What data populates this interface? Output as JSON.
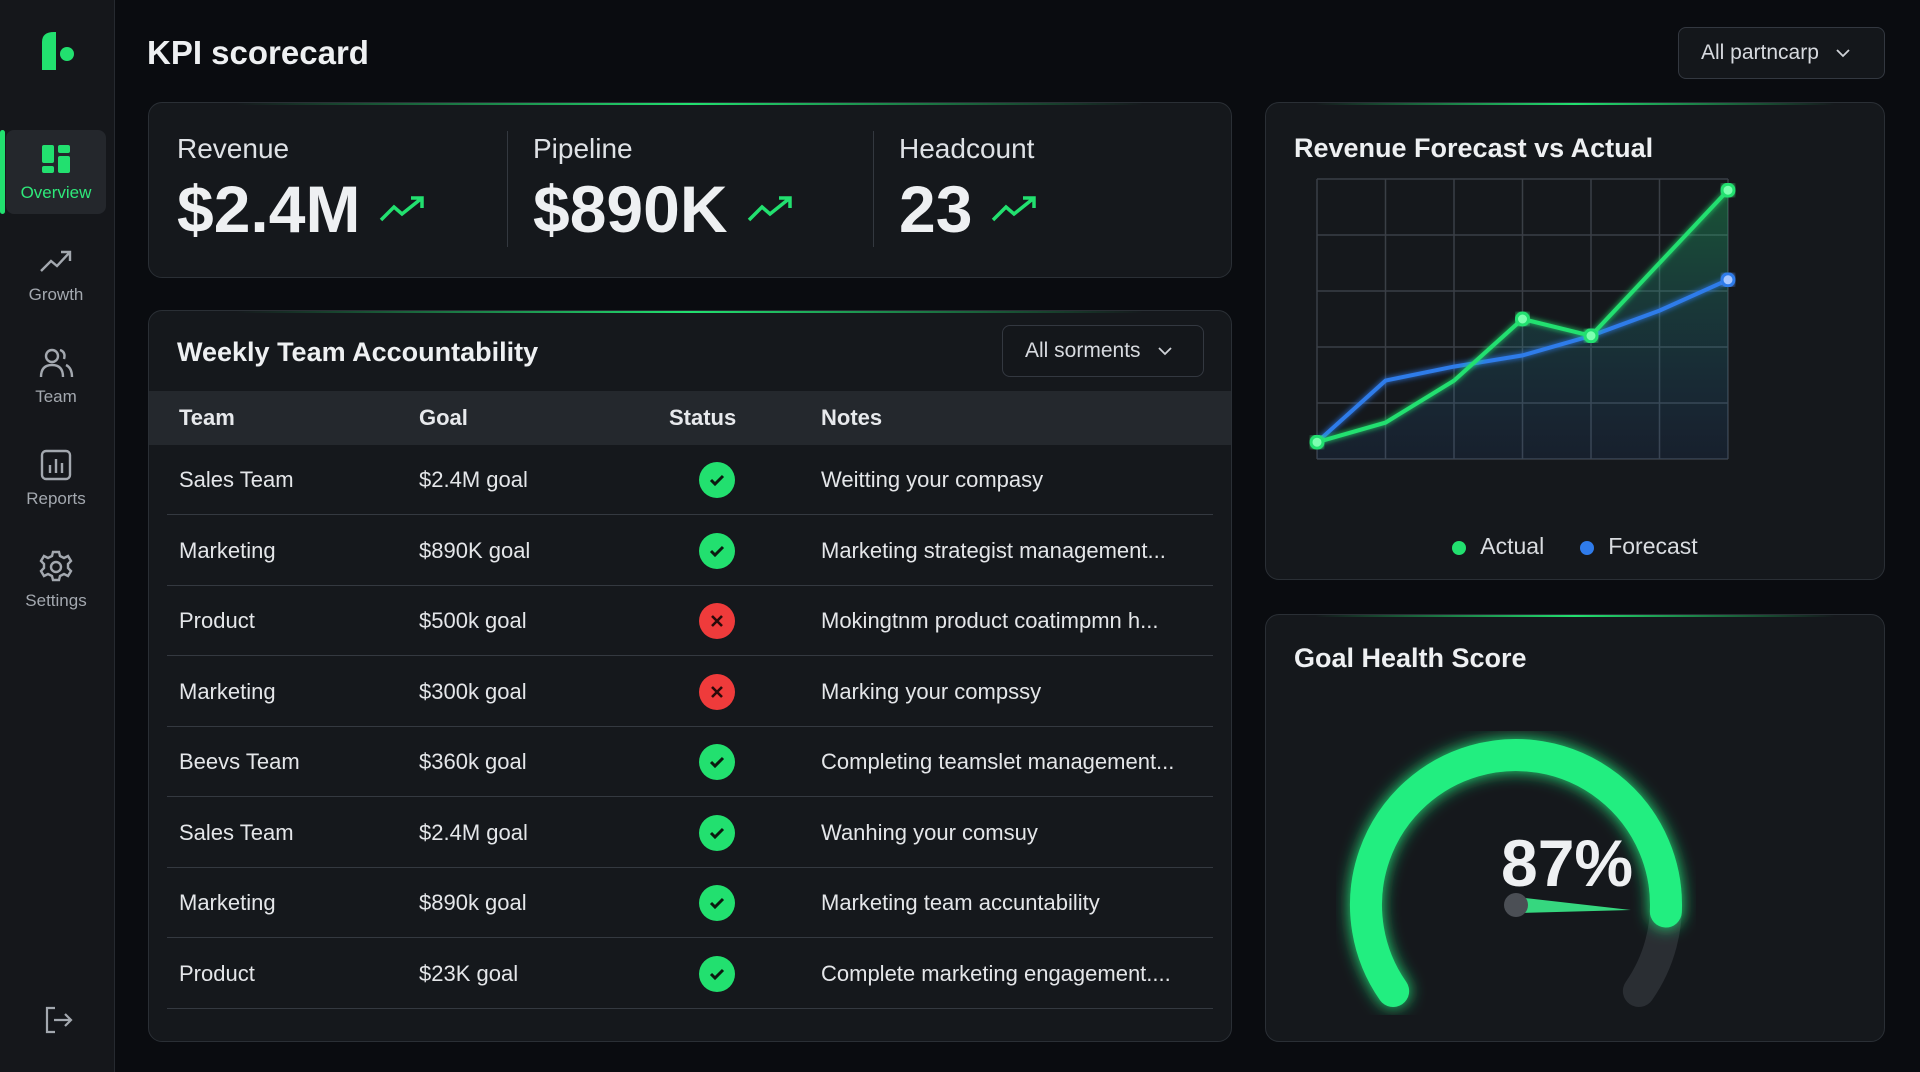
{
  "header": {
    "title": "KPI scorecard",
    "filter": "All partncarp"
  },
  "sidebar": {
    "items": [
      {
        "label": "Overview",
        "icon": "dashboard-icon",
        "active": true
      },
      {
        "label": "Growth",
        "icon": "trending-up-icon"
      },
      {
        "label": "Team",
        "icon": "users-icon"
      },
      {
        "label": "Reports",
        "icon": "bar-chart-icon"
      },
      {
        "label": "Settings",
        "icon": "gear-icon"
      }
    ],
    "logout_icon": "logout-icon"
  },
  "kpis": [
    {
      "label": "Revenue",
      "value": "$2.4M",
      "trend": "up"
    },
    {
      "label": "Pipeline",
      "value": "$890K",
      "trend": "up"
    },
    {
      "label": "Headcount",
      "value": "23",
      "trend": "up"
    }
  ],
  "table": {
    "title": "Weekly Team Accountability",
    "filter": "All sorments",
    "columns": [
      "Team",
      "Goal",
      "Status",
      "Notes"
    ],
    "rows": [
      {
        "team": "Sales Team",
        "goal": "$2.4M goal",
        "status": "ok",
        "notes": "Weitting your compasy"
      },
      {
        "team": "Marketing",
        "goal": "$890K goal",
        "status": "ok",
        "notes": "Marketing strategist management..."
      },
      {
        "team": "Product",
        "goal": "$500k goal",
        "status": "fail",
        "notes": "Mokingtnm product coatimpmn h..."
      },
      {
        "team": "Marketing",
        "goal": "$300k goal",
        "status": "fail",
        "notes": "Marking your compssy"
      },
      {
        "team": "Beevs Team",
        "goal": "$360k goal",
        "status": "ok",
        "notes": "Completing teamslet management..."
      },
      {
        "team": "Sales Team",
        "goal": "$2.4M goal",
        "status": "ok",
        "notes": "Wanhing your comsuy"
      },
      {
        "team": "Marketing",
        "goal": "$890k goal",
        "status": "ok",
        "notes": "Marketing team accuntability"
      },
      {
        "team": "Product",
        "goal": "$23K goal",
        "status": "ok",
        "notes": "Complete marketing engagement...."
      }
    ]
  },
  "colors": {
    "accent": "#22e06f",
    "forecast": "#2f7bea",
    "fail": "#ef3b3b"
  },
  "chart_data": {
    "type": "line",
    "title": "Revenue Forecast vs Actual",
    "grid": true,
    "legend": "bottom",
    "xlim": [
      0,
      6
    ],
    "ylim": [
      0,
      5
    ],
    "x": [
      0,
      1,
      2,
      3,
      4,
      5,
      6
    ],
    "series": [
      {
        "name": "Actual",
        "color": "#22e06f",
        "values": [
          0.3,
          0.65,
          1.4,
          2.5,
          2.2,
          3.5,
          4.8
        ]
      },
      {
        "name": "Forecast",
        "color": "#2f7bea",
        "values": [
          0.3,
          1.4,
          1.65,
          1.85,
          2.2,
          2.65,
          3.2
        ]
      }
    ]
  },
  "gauge": {
    "title": "Goal Health Score",
    "value": 87,
    "label": "87%"
  }
}
